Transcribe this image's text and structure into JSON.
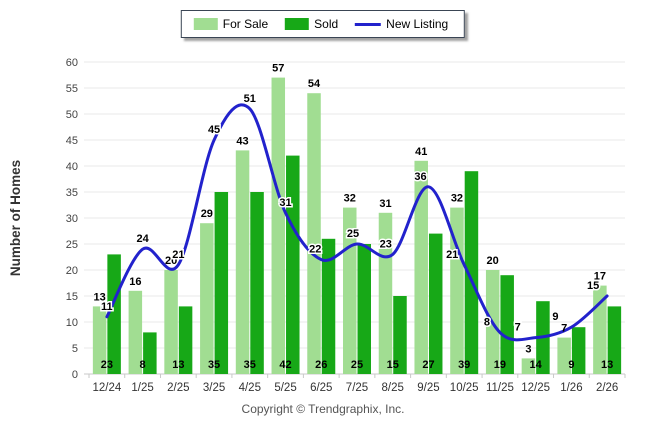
{
  "legend": {
    "items": [
      {
        "label": "For Sale",
        "color": "#A1DD92",
        "marker": "swatch"
      },
      {
        "label": "Sold",
        "color": "#17A817",
        "marker": "swatch"
      },
      {
        "label": "New Listing",
        "color": "#2222CC",
        "marker": "line"
      }
    ]
  },
  "footer": {
    "copyright": "Copyright © Trendgraphix, Inc."
  },
  "chart_data": {
    "type": "bar",
    "subtype": "grouped bars with smooth line overlay",
    "categories": [
      "12/24",
      "1/25",
      "2/25",
      "3/25",
      "4/25",
      "5/25",
      "6/25",
      "7/25",
      "8/25",
      "9/25",
      "10/25",
      "11/25",
      "12/25",
      "1/26",
      "2/26"
    ],
    "series": [
      {
        "name": "For Sale",
        "type": "bar",
        "color": "#A1DD92",
        "values": [
          13,
          16,
          20,
          29,
          43,
          57,
          54,
          32,
          31,
          41,
          32,
          20,
          3,
          7,
          17
        ],
        "label_position": "above-bar"
      },
      {
        "name": "Sold",
        "type": "bar",
        "color": "#17A817",
        "values": [
          23,
          8,
          13,
          35,
          35,
          42,
          26,
          25,
          15,
          27,
          39,
          19,
          14,
          9,
          13
        ],
        "label_position": "inside-bar-bottom"
      },
      {
        "name": "New Listing",
        "type": "line",
        "color": "#2222CC",
        "values": [
          11,
          24,
          21,
          45,
          51,
          31,
          22,
          25,
          23,
          36,
          21,
          8,
          7,
          9,
          15
        ],
        "label_position": "above-point"
      }
    ],
    "xlabel": "",
    "ylabel": "Number of Homes",
    "ylim": [
      0,
      60
    ],
    "ytick_step": 5,
    "grid": true,
    "legend_position": "top-center",
    "value_labels": true
  }
}
